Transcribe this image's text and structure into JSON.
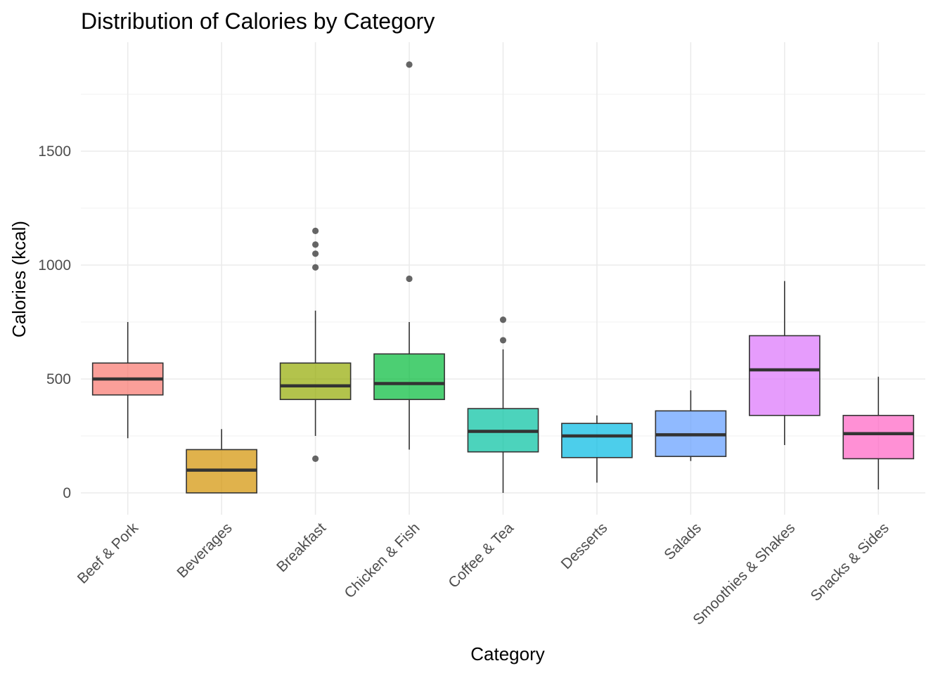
{
  "chart_data": {
    "type": "box",
    "title": "Distribution of Calories by Category",
    "xlabel": "Category",
    "ylabel": "Calories (kcal)",
    "ylim": [
      -90,
      1920
    ],
    "yticks": [
      0,
      500,
      1000,
      1500
    ],
    "grid": true,
    "legend": "none",
    "categories": [
      {
        "name": "Beef & Pork",
        "color": "#F8766D",
        "whisker_low": 240,
        "q1": 430,
        "median": 500,
        "q3": 570,
        "whisker_high": 750,
        "outliers": []
      },
      {
        "name": "Beverages",
        "color": "#D39200",
        "whisker_low": 0,
        "q1": 0,
        "median": 100,
        "q3": 190,
        "whisker_high": 280,
        "outliers": []
      },
      {
        "name": "Breakfast",
        "color": "#93AA00",
        "whisker_low": 250,
        "q1": 410,
        "median": 470,
        "q3": 570,
        "whisker_high": 800,
        "outliers": [
          150,
          990,
          1050,
          1090,
          1150
        ]
      },
      {
        "name": "Chicken & Fish",
        "color": "#00BA38",
        "whisker_low": 190,
        "q1": 410,
        "median": 480,
        "q3": 610,
        "whisker_high": 750,
        "outliers": [
          940,
          1880
        ]
      },
      {
        "name": "Coffee & Tea",
        "color": "#00C19F",
        "whisker_low": 0,
        "q1": 180,
        "median": 270,
        "q3": 370,
        "whisker_high": 630,
        "outliers": [
          670,
          760
        ]
      },
      {
        "name": "Desserts",
        "color": "#00B9E3",
        "whisker_low": 45,
        "q1": 155,
        "median": 250,
        "q3": 305,
        "whisker_high": 340,
        "outliers": []
      },
      {
        "name": "Salads",
        "color": "#619CFF",
        "whisker_low": 140,
        "q1": 160,
        "median": 255,
        "q3": 360,
        "whisker_high": 450,
        "outliers": []
      },
      {
        "name": "Smoothies & Shakes",
        "color": "#DB72FB",
        "whisker_low": 210,
        "q1": 340,
        "median": 540,
        "q3": 690,
        "whisker_high": 930,
        "outliers": []
      },
      {
        "name": "Snacks & Sides",
        "color": "#FF61C3",
        "whisker_low": 15,
        "q1": 150,
        "median": 260,
        "q3": 340,
        "whisker_high": 510,
        "outliers": []
      }
    ]
  }
}
